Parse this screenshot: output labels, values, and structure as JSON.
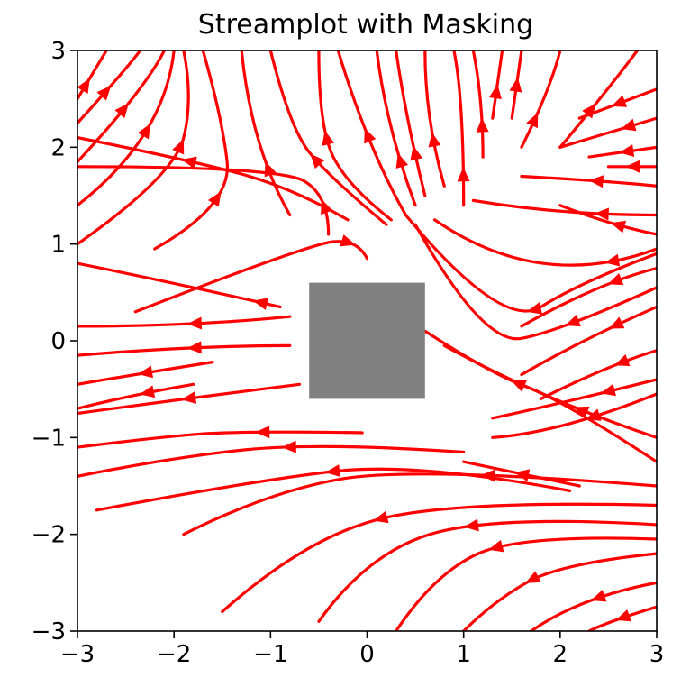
{
  "chart_data": {
    "type": "streamplot",
    "title": "Streamplot with Masking",
    "xlabel": "",
    "ylabel": "",
    "xlim": [
      -3,
      3
    ],
    "ylim": [
      -3,
      3
    ],
    "x_ticks": [
      -3,
      -2,
      -1,
      0,
      1,
      2,
      3
    ],
    "y_ticks": [
      -3,
      -2,
      -1,
      0,
      1,
      2,
      3
    ],
    "x_tick_labels": [
      "−3",
      "−2",
      "−1",
      "0",
      "1",
      "2",
      "3"
    ],
    "y_tick_labels": [
      "−3",
      "−2",
      "−1",
      "0",
      "1",
      "2",
      "3"
    ],
    "grid": false,
    "stream_color": "#ff0000",
    "mask_color": "#808080",
    "mask": {
      "x0": -0.6,
      "x1": 0.6,
      "y0": -0.6,
      "y1": 0.6
    },
    "streamlines": [
      {
        "points": [
          [
            -0.05,
            -0.95
          ],
          [
            -1.3,
            -0.93
          ],
          [
            -2.2,
            -1.0
          ],
          [
            -3.0,
            -1.1
          ]
        ],
        "arrow_at": 0.35
      },
      {
        "points": [
          [
            1.0,
            -1.15
          ],
          [
            -0.5,
            -1.05
          ],
          [
            -2.0,
            -1.2
          ],
          [
            -3.0,
            -1.4
          ]
        ],
        "arrow_at": 0.45
      },
      {
        "points": [
          [
            2.1,
            -1.55
          ],
          [
            0.5,
            -1.25
          ],
          [
            -1.2,
            -1.45
          ],
          [
            -2.8,
            -1.75
          ]
        ],
        "arrow_at": 0.5
      },
      {
        "points": [
          [
            3.0,
            -1.5
          ],
          [
            0.5,
            -1.3
          ],
          [
            -1.0,
            -1.55
          ],
          [
            -1.9,
            -2.0
          ]
        ],
        "arrow_at": 0.35
      },
      {
        "points": [
          [
            3.0,
            -1.7
          ],
          [
            1.0,
            -1.65
          ],
          [
            -0.6,
            -2.0
          ],
          [
            -1.5,
            -2.8
          ]
        ],
        "arrow_at": 0.6
      },
      {
        "points": [
          [
            3.0,
            -1.9
          ],
          [
            1.3,
            -1.8
          ],
          [
            0.0,
            -2.2
          ],
          [
            -0.5,
            -2.9
          ]
        ],
        "arrow_at": 0.5
      },
      {
        "points": [
          [
            3.0,
            -2.05
          ],
          [
            1.6,
            -2.0
          ],
          [
            0.7,
            -2.4
          ],
          [
            0.3,
            -3.0
          ]
        ],
        "arrow_at": 0.55
      },
      {
        "points": [
          [
            3.0,
            -2.2
          ],
          [
            2.0,
            -2.3
          ],
          [
            1.3,
            -2.7
          ],
          [
            1.0,
            -3.0
          ]
        ],
        "arrow_at": 0.6
      },
      {
        "points": [
          [
            3.0,
            -2.5
          ],
          [
            2.2,
            -2.65
          ],
          [
            1.7,
            -3.0
          ]
        ],
        "arrow_at": 0.45
      },
      {
        "points": [
          [
            3.0,
            -2.75
          ],
          [
            2.5,
            -2.9
          ],
          [
            2.3,
            -3.0
          ]
        ],
        "arrow_at": 0.5
      },
      {
        "points": [
          [
            -0.7,
            -0.45
          ],
          [
            -1.9,
            -0.6
          ],
          [
            -3.0,
            -0.75
          ]
        ],
        "arrow_at": 0.5
      },
      {
        "points": [
          [
            -1.8,
            -0.45
          ],
          [
            -2.4,
            -0.55
          ],
          [
            -3.0,
            -0.7
          ]
        ],
        "arrow_at": 0.4
      },
      {
        "points": [
          [
            -1.6,
            -0.22
          ],
          [
            -2.3,
            -0.33
          ],
          [
            -3.0,
            -0.45
          ]
        ],
        "arrow_at": 0.5
      },
      {
        "points": [
          [
            -0.8,
            -0.05
          ],
          [
            -1.8,
            -0.05
          ],
          [
            -3.0,
            -0.15
          ]
        ],
        "arrow_at": 0.45
      },
      {
        "points": [
          [
            -0.8,
            0.25
          ],
          [
            -1.8,
            0.15
          ],
          [
            -3.0,
            0.15
          ]
        ],
        "arrow_at": 0.45
      },
      {
        "points": [
          [
            -0.9,
            0.35
          ],
          [
            -2.0,
            0.6
          ],
          [
            -3.0,
            0.8
          ]
        ],
        "arrow_at": 0.1
      },
      {
        "points": [
          [
            -2.4,
            0.3
          ],
          [
            -0.6,
            1.0
          ],
          [
            -0.1,
            1.05
          ],
          [
            0.0,
            0.85
          ]
        ],
        "arrow_at": 0.9
      },
      {
        "points": [
          [
            -0.4,
            1.1
          ],
          [
            -0.4,
            1.5
          ],
          [
            -0.9,
            1.8
          ],
          [
            -3.0,
            1.8
          ]
        ],
        "arrow_at": 0.1
      },
      {
        "points": [
          [
            -0.2,
            1.25
          ],
          [
            -0.8,
            1.6
          ],
          [
            -2.0,
            1.9
          ],
          [
            -3.0,
            2.1
          ]
        ],
        "arrow_at": 0.6
      },
      {
        "points": [
          [
            0.25,
            1.25
          ],
          [
            -0.2,
            1.6
          ],
          [
            -0.5,
            2.2
          ],
          [
            -0.5,
            3.0
          ]
        ],
        "arrow_at": 0.55
      },
      {
        "points": [
          [
            0.2,
            1.2
          ],
          [
            -0.4,
            1.7
          ],
          [
            -0.8,
            2.2
          ],
          [
            -1.0,
            3.0
          ]
        ],
        "arrow_at": 0.45
      },
      {
        "points": [
          [
            -0.8,
            1.3
          ],
          [
            -1.2,
            2.0
          ],
          [
            -1.3,
            3.0
          ]
        ],
        "arrow_at": 0.3
      },
      {
        "points": [
          [
            -2.2,
            0.95
          ],
          [
            -1.4,
            1.4
          ],
          [
            -1.5,
            2.3
          ],
          [
            -1.7,
            3.0
          ]
        ],
        "arrow_at": 0.35
      },
      {
        "points": [
          [
            -3.0,
            1.0
          ],
          [
            -2.0,
            1.7
          ],
          [
            -1.8,
            2.5
          ],
          [
            -1.9,
            3.0
          ]
        ],
        "arrow_at": 0.6
      },
      {
        "points": [
          [
            -3.0,
            1.4
          ],
          [
            -2.1,
            2.1
          ],
          [
            -2.0,
            3.0
          ]
        ],
        "arrow_at": 0.55
      },
      {
        "points": [
          [
            -3.0,
            1.85
          ],
          [
            -2.3,
            2.6
          ],
          [
            -2.1,
            3.0
          ]
        ],
        "arrow_at": 0.5
      },
      {
        "points": [
          [
            -3.0,
            2.25
          ],
          [
            -2.5,
            2.8
          ],
          [
            -2.35,
            3.0
          ]
        ],
        "arrow_at": 0.45
      },
      {
        "points": [
          [
            -3.0,
            2.5
          ],
          [
            -2.7,
            3.0
          ]
        ],
        "arrow_at": 0.3
      },
      {
        "points": [
          [
            0.4,
            1.3
          ],
          [
            0.0,
            2.0
          ],
          [
            -0.3,
            3.0
          ]
        ],
        "arrow_at": 0.5
      },
      {
        "points": [
          [
            0.5,
            1.4
          ],
          [
            0.2,
            2.2
          ],
          [
            0.1,
            3.0
          ]
        ],
        "arrow_at": 0.3
      },
      {
        "points": [
          [
            0.6,
            1.5
          ],
          [
            0.4,
            2.3
          ],
          [
            0.3,
            3.0
          ]
        ],
        "arrow_at": 0.3
      },
      {
        "points": [
          [
            0.8,
            1.6
          ],
          [
            0.6,
            2.3
          ],
          [
            0.6,
            3.0
          ]
        ],
        "arrow_at": 0.35
      },
      {
        "points": [
          [
            1.0,
            1.4
          ],
          [
            1.0,
            2.5
          ],
          [
            0.9,
            3.0
          ]
        ],
        "arrow_at": 0.2
      },
      {
        "points": [
          [
            1.2,
            1.9
          ],
          [
            1.2,
            2.5
          ],
          [
            1.1,
            3.0
          ]
        ],
        "arrow_at": 0.3
      },
      {
        "points": [
          [
            1.3,
            2.3
          ],
          [
            1.4,
            3.0
          ]
        ],
        "arrow_at": 0.4
      },
      {
        "points": [
          [
            1.5,
            2.3
          ],
          [
            1.6,
            3.0
          ]
        ],
        "arrow_at": 0.5
      },
      {
        "points": [
          [
            1.6,
            2.0
          ],
          [
            1.9,
            2.6
          ],
          [
            2.0,
            3.0
          ]
        ],
        "arrow_at": 0.3
      },
      {
        "points": [
          [
            2.0,
            2.0
          ],
          [
            2.5,
            2.6
          ],
          [
            2.8,
            3.0
          ]
        ],
        "arrow_at": 0.4
      },
      {
        "points": [
          [
            3.0,
            2.6
          ],
          [
            2.2,
            2.3
          ]
        ],
        "arrow_at": 0.5
      },
      {
        "points": [
          [
            3.0,
            2.3
          ],
          [
            2.0,
            2.0
          ]
        ],
        "arrow_at": 0.3
      },
      {
        "points": [
          [
            3.0,
            2.0
          ],
          [
            2.3,
            1.9
          ]
        ],
        "arrow_at": 0.45
      },
      {
        "points": [
          [
            3.0,
            1.8
          ],
          [
            2.5,
            1.8
          ]
        ],
        "arrow_at": 0.5
      },
      {
        "points": [
          [
            3.0,
            1.6
          ],
          [
            2.5,
            1.65
          ],
          [
            1.6,
            1.7
          ]
        ],
        "arrow_at": 0.45
      },
      {
        "points": [
          [
            3.0,
            1.3
          ],
          [
            2.0,
            1.3
          ],
          [
            1.1,
            1.45
          ]
        ],
        "arrow_at": 0.3
      },
      {
        "points": [
          [
            3.0,
            1.1
          ],
          [
            2.5,
            1.2
          ],
          [
            2.0,
            1.4
          ]
        ],
        "arrow_at": 0.4
      },
      {
        "points": [
          [
            3.0,
            0.95
          ],
          [
            1.8,
            0.5
          ],
          [
            0.7,
            1.25
          ]
        ],
        "arrow_at": 0.2
      },
      {
        "points": [
          [
            3.0,
            0.9
          ],
          [
            2.2,
            0.6
          ],
          [
            1.4,
            0.1
          ],
          [
            0.4,
            1.3
          ]
        ],
        "arrow_at": 0.45
      },
      {
        "points": [
          [
            3.0,
            0.75
          ],
          [
            2.4,
            0.6
          ],
          [
            1.6,
            0.15
          ]
        ],
        "arrow_at": 0.3
      },
      {
        "points": [
          [
            3.0,
            0.55
          ],
          [
            2.0,
            0.1
          ],
          [
            1.2,
            -0.05
          ],
          [
            0.5,
            1.2
          ]
        ],
        "arrow_at": 0.3
      },
      {
        "points": [
          [
            3.0,
            0.35
          ],
          [
            2.2,
            0.0
          ],
          [
            1.6,
            -0.35
          ]
        ],
        "arrow_at": 0.3
      },
      {
        "points": [
          [
            3.0,
            -0.1
          ],
          [
            2.5,
            -0.25
          ],
          [
            1.8,
            -0.6
          ]
        ],
        "arrow_at": 0.3
      },
      {
        "points": [
          [
            3.0,
            -0.4
          ],
          [
            2.0,
            -0.65
          ],
          [
            1.3,
            -0.8
          ]
        ],
        "arrow_at": 0.3
      },
      {
        "points": [
          [
            3.0,
            -0.55
          ],
          [
            2.0,
            -0.95
          ],
          [
            1.3,
            -1.0
          ]
        ],
        "arrow_at": 0.4
      },
      {
        "points": [
          [
            3.0,
            -1.0
          ],
          [
            1.8,
            -0.6
          ],
          [
            0.8,
            -0.05
          ]
        ],
        "arrow_at": 0.35
      },
      {
        "points": [
          [
            3.0,
            -1.25
          ],
          [
            2.0,
            -0.6
          ],
          [
            1.3,
            -0.35
          ],
          [
            0.6,
            0.1
          ]
        ],
        "arrow_at": 0.6
      },
      {
        "points": [
          [
            2.2,
            -1.5
          ],
          [
            1.0,
            -1.25
          ]
        ],
        "arrow_at": 0.5
      }
    ]
  }
}
